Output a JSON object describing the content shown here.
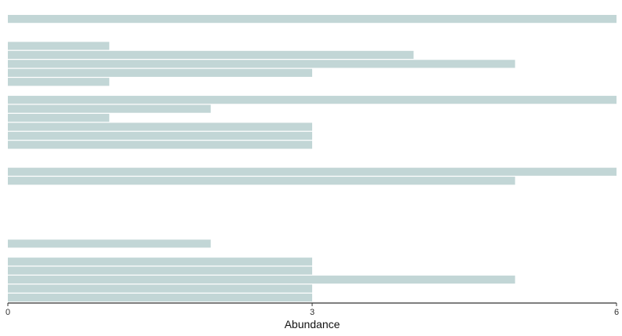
{
  "chart_data": {
    "type": "bar",
    "orientation": "horizontal",
    "title": "",
    "xlabel": "Abundance",
    "ylabel": "",
    "xlim": [
      0,
      6
    ],
    "xticks": [
      {
        "value": 0,
        "label": "0"
      },
      {
        "value": 3,
        "label": "3"
      },
      {
        "value": 6,
        "label": "6"
      }
    ],
    "grid": false,
    "legend": "none",
    "bar_color": "#c2d6d6",
    "values": [
      6,
      null,
      null,
      1,
      4,
      5,
      3,
      1,
      null,
      6,
      2,
      1,
      3,
      3,
      3,
      null,
      null,
      6,
      5,
      null,
      null,
      null,
      null,
      null,
      null,
      2,
      null,
      3,
      3,
      5,
      3,
      3
    ]
  }
}
